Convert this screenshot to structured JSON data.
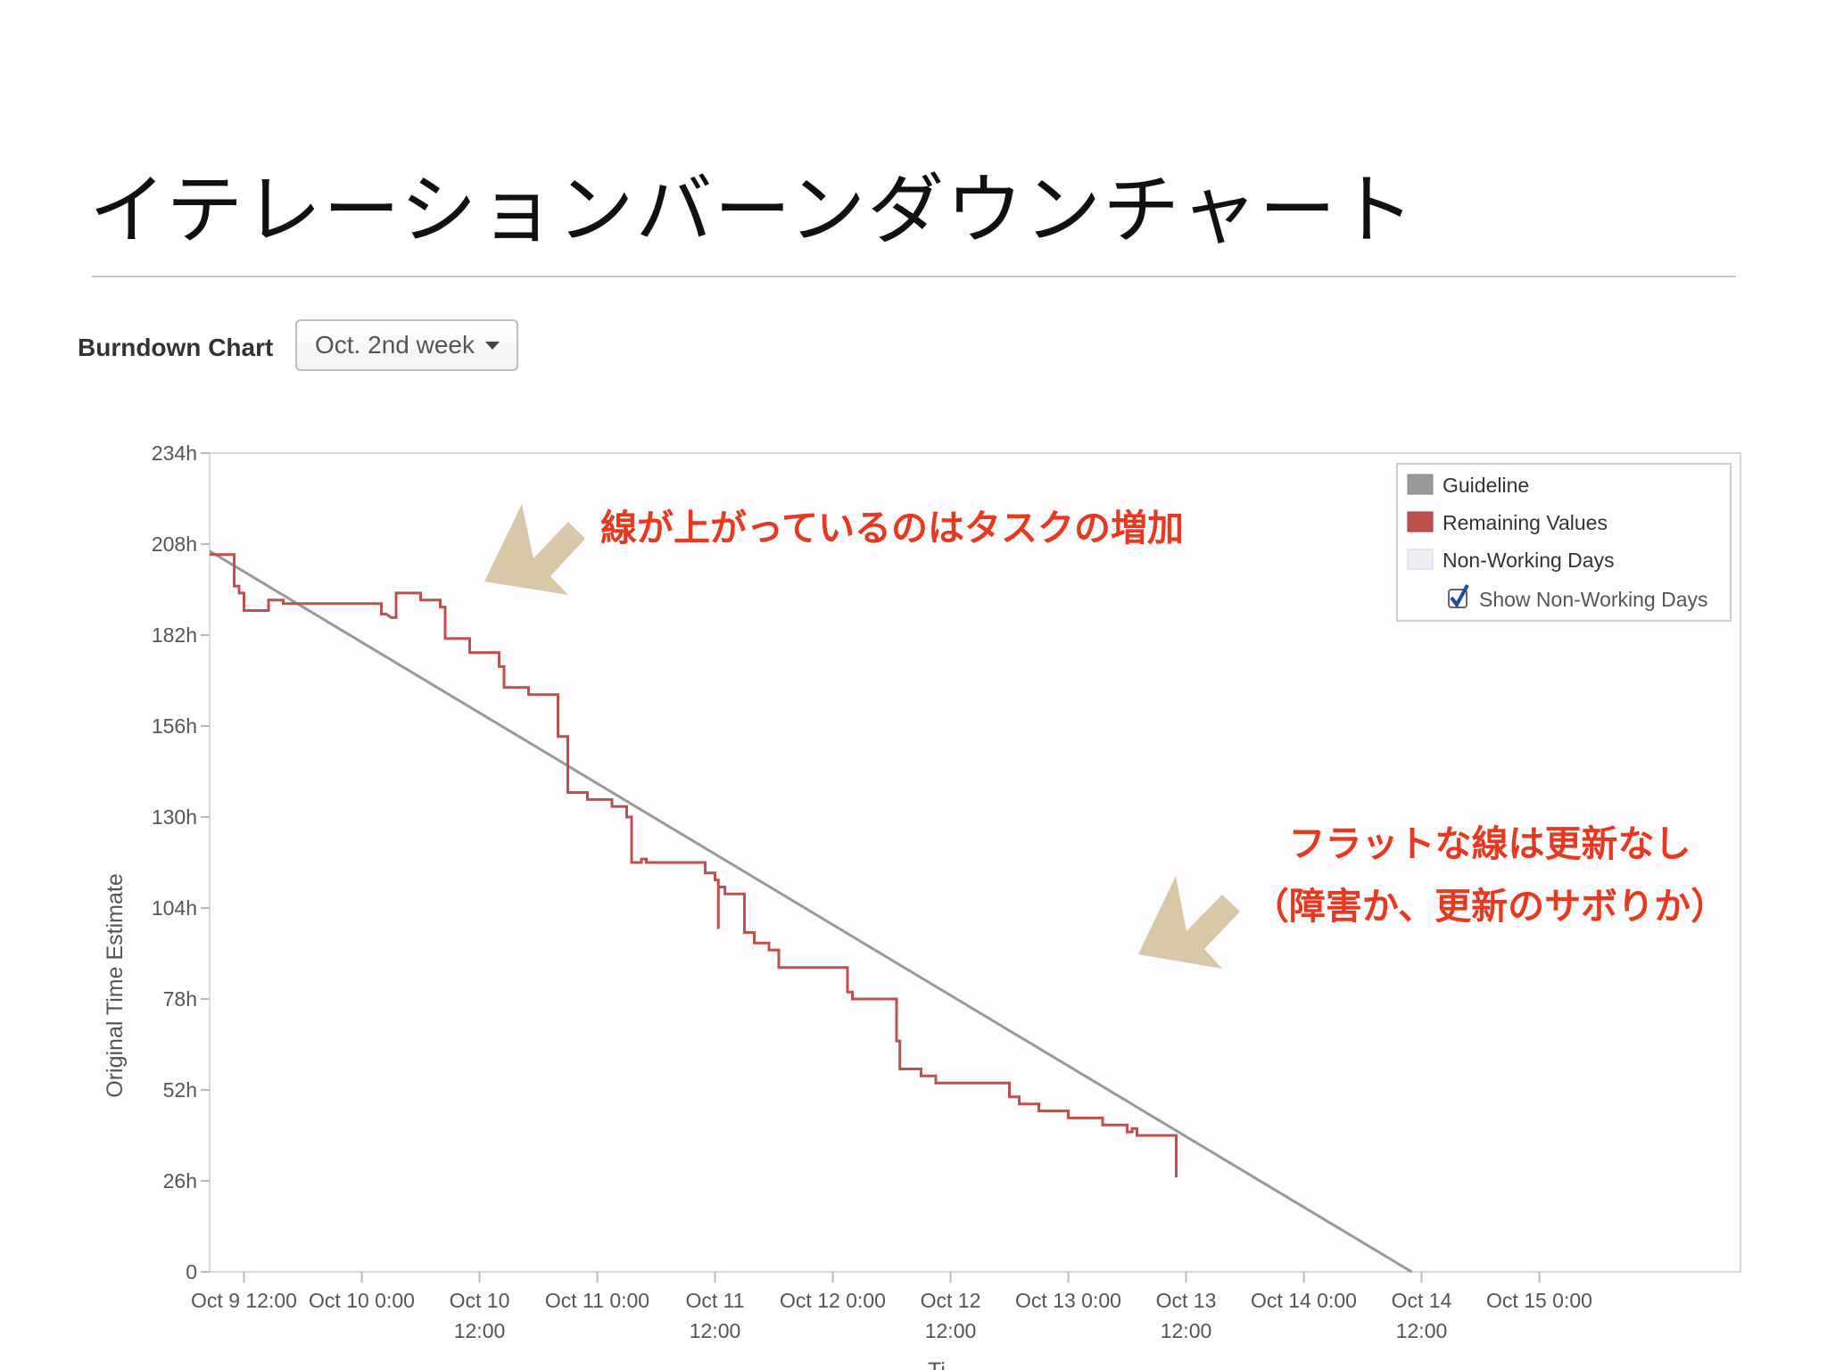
{
  "slide": {
    "title": "イテレーションバーンダウンチャート"
  },
  "toolbar": {
    "label": "Burndown Chart",
    "dropdown_value": "Oct. 2nd week"
  },
  "annotations": {
    "increase_note": "線が上がっているのはタスクの増加",
    "flat_note_line1": "フラットな線は更新なし",
    "flat_note_line2": "（障害か、更新のサボりか）"
  },
  "colors": {
    "guideline": "#999999",
    "remaining": "#c0504d",
    "annotation_text": "#e8391f",
    "arrow": "#d8c8a8"
  },
  "chart_data": {
    "type": "line",
    "ylabel": "Original Time Estimate",
    "xlabel": "Ti",
    "ylim": [
      0,
      234
    ],
    "yticks": [
      "0",
      "26h",
      "52h",
      "78h",
      "104h",
      "130h",
      "156h",
      "182h",
      "208h",
      "234h"
    ],
    "xlim": [
      "2012-10-09T08:30",
      "2012-10-15T20:30"
    ],
    "xticks": [
      {
        "t": "2012-10-09T12:00",
        "l1": "Oct 9 12:00",
        "l2": ""
      },
      {
        "t": "2012-10-10T00:00",
        "l1": "Oct 10 0:00",
        "l2": ""
      },
      {
        "t": "2012-10-10T12:00",
        "l1": "Oct 10",
        "l2": "12:00"
      },
      {
        "t": "2012-10-11T00:00",
        "l1": "Oct 11 0:00",
        "l2": ""
      },
      {
        "t": "2012-10-11T12:00",
        "l1": "Oct 11",
        "l2": "12:00"
      },
      {
        "t": "2012-10-12T00:00",
        "l1": "Oct 12 0:00",
        "l2": ""
      },
      {
        "t": "2012-10-12T12:00",
        "l1": "Oct 12",
        "l2": "12:00"
      },
      {
        "t": "2012-10-13T00:00",
        "l1": "Oct 13 0:00",
        "l2": ""
      },
      {
        "t": "2012-10-13T12:00",
        "l1": "Oct 13",
        "l2": "12:00"
      },
      {
        "t": "2012-10-14T00:00",
        "l1": "Oct 14 0:00",
        "l2": ""
      },
      {
        "t": "2012-10-14T12:00",
        "l1": "Oct 14",
        "l2": "12:00"
      },
      {
        "t": "2012-10-15T00:00",
        "l1": "Oct 15 0:00",
        "l2": ""
      }
    ],
    "legend": {
      "placement": "top-right",
      "items": [
        {
          "label": "Guideline",
          "color": "#999999"
        },
        {
          "label": "Remaining Values",
          "color": "#c0504d"
        },
        {
          "label": "Non-Working Days",
          "color": "#eeeef5"
        }
      ],
      "checkbox_label": "Show Non-Working Days",
      "checkbox_checked": true
    },
    "series": [
      {
        "name": "Guideline",
        "points": [
          [
            "2012-10-09T08:30",
            206
          ],
          [
            "2012-10-14T11:00",
            0
          ]
        ]
      },
      {
        "name": "Remaining Values",
        "points": [
          [
            "2012-10-09T08:30",
            205
          ],
          [
            "2012-10-09T10:45",
            205
          ],
          [
            "2012-10-09T11:00",
            205
          ],
          [
            "2012-10-09T11:00",
            196
          ],
          [
            "2012-10-09T11:30",
            196
          ],
          [
            "2012-10-09T11:30",
            194
          ],
          [
            "2012-10-09T12:00",
            194
          ],
          [
            "2012-10-09T12:00",
            189
          ],
          [
            "2012-10-09T14:00",
            189
          ],
          [
            "2012-10-09T14:30",
            189
          ],
          [
            "2012-10-09T14:30",
            192
          ],
          [
            "2012-10-09T16:00",
            192
          ],
          [
            "2012-10-09T16:00",
            191
          ],
          [
            "2012-10-10T02:00",
            191
          ],
          [
            "2012-10-10T02:00",
            188
          ],
          [
            "2012-10-10T02:30",
            188
          ],
          [
            "2012-10-10T03:00",
            187
          ],
          [
            "2012-10-10T03:30",
            187
          ],
          [
            "2012-10-10T03:30",
            194
          ],
          [
            "2012-10-10T06:00",
            194
          ],
          [
            "2012-10-10T06:00",
            192
          ],
          [
            "2012-10-10T08:00",
            192
          ],
          [
            "2012-10-10T08:00",
            190
          ],
          [
            "2012-10-10T08:30",
            190
          ],
          [
            "2012-10-10T08:30",
            181
          ],
          [
            "2012-10-10T11:00",
            181
          ],
          [
            "2012-10-10T11:00",
            177
          ],
          [
            "2012-10-10T14:00",
            177
          ],
          [
            "2012-10-10T14:00",
            173
          ],
          [
            "2012-10-10T14:30",
            173
          ],
          [
            "2012-10-10T14:30",
            167
          ],
          [
            "2012-10-10T17:00",
            167
          ],
          [
            "2012-10-10T17:00",
            165
          ],
          [
            "2012-10-10T20:00",
            165
          ],
          [
            "2012-10-10T20:00",
            153
          ],
          [
            "2012-10-10T21:00",
            153
          ],
          [
            "2012-10-10T21:00",
            137
          ],
          [
            "2012-10-10T23:00",
            137
          ],
          [
            "2012-10-10T23:00",
            135
          ],
          [
            "2012-10-11T01:30",
            135
          ],
          [
            "2012-10-11T01:30",
            133
          ],
          [
            "2012-10-11T03:00",
            133
          ],
          [
            "2012-10-11T03:00",
            130
          ],
          [
            "2012-10-11T03:30",
            130
          ],
          [
            "2012-10-11T03:30",
            117
          ],
          [
            "2012-10-11T04:30",
            117
          ],
          [
            "2012-10-11T04:30",
            118
          ],
          [
            "2012-10-11T05:00",
            118
          ],
          [
            "2012-10-11T05:00",
            117
          ],
          [
            "2012-10-11T11:00",
            117
          ],
          [
            "2012-10-11T11:00",
            114
          ],
          [
            "2012-10-11T12:00",
            114
          ],
          [
            "2012-10-11T12:00",
            112
          ],
          [
            "2012-10-11T12:20",
            112
          ],
          [
            "2012-10-11T12:20",
            98
          ],
          [
            "2012-10-11T12:20",
            110
          ],
          [
            "2012-10-11T13:00",
            110
          ],
          [
            "2012-10-11T13:00",
            108
          ],
          [
            "2012-10-11T15:00",
            108
          ],
          [
            "2012-10-11T15:00",
            97
          ],
          [
            "2012-10-11T16:00",
            97
          ],
          [
            "2012-10-11T16:00",
            94
          ],
          [
            "2012-10-11T17:30",
            94
          ],
          [
            "2012-10-11T17:30",
            92
          ],
          [
            "2012-10-11T18:30",
            92
          ],
          [
            "2012-10-11T18:30",
            87
          ],
          [
            "2012-10-12T01:30",
            87
          ],
          [
            "2012-10-12T01:30",
            80
          ],
          [
            "2012-10-12T02:00",
            80
          ],
          [
            "2012-10-12T02:00",
            78
          ],
          [
            "2012-10-12T06:30",
            78
          ],
          [
            "2012-10-12T06:30",
            66
          ],
          [
            "2012-10-12T06:50",
            66
          ],
          [
            "2012-10-12T06:50",
            58
          ],
          [
            "2012-10-12T09:00",
            58
          ],
          [
            "2012-10-12T09:00",
            56
          ],
          [
            "2012-10-12T10:30",
            56
          ],
          [
            "2012-10-12T10:30",
            54
          ],
          [
            "2012-10-12T18:00",
            54
          ],
          [
            "2012-10-12T18:00",
            50
          ],
          [
            "2012-10-12T19:00",
            50
          ],
          [
            "2012-10-12T19:00",
            48
          ],
          [
            "2012-10-12T21:00",
            48
          ],
          [
            "2012-10-12T21:00",
            46
          ],
          [
            "2012-10-13T00:00",
            46
          ],
          [
            "2012-10-13T00:00",
            44
          ],
          [
            "2012-10-13T03:30",
            44
          ],
          [
            "2012-10-13T03:30",
            42
          ],
          [
            "2012-10-13T06:00",
            42
          ],
          [
            "2012-10-13T06:00",
            40
          ],
          [
            "2012-10-13T06:30",
            40
          ],
          [
            "2012-10-13T06:30",
            41
          ],
          [
            "2012-10-13T07:00",
            41
          ],
          [
            "2012-10-13T07:00",
            39
          ],
          [
            "2012-10-13T11:00",
            39
          ],
          [
            "2012-10-13T11:00",
            27
          ]
        ]
      }
    ]
  }
}
